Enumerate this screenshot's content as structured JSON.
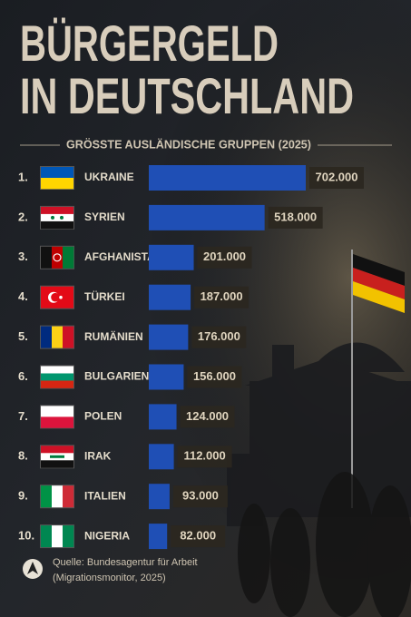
{
  "chart_data": {
    "type": "bar",
    "orientation": "horizontal",
    "title_lines": [
      "BÜRGERGELD",
      "IN DEUTSCHLAND"
    ],
    "subtitle": "GRÖSSTE AUSLÄNDISCHE GRUPPEN (2025)",
    "ranks": [
      "1.",
      "2.",
      "3.",
      "4.",
      "5.",
      "6.",
      "7.",
      "8.",
      "9.",
      "10."
    ],
    "categories": [
      "UKRAINE",
      "SYRIEN",
      "AFGHANISTAN",
      "TÜRKEI",
      "RUMÄNIEN",
      "BULGARIEN",
      "POLEN",
      "IRAK",
      "ITALIEN",
      "NIGERIA"
    ],
    "values": [
      702000,
      518000,
      201000,
      187000,
      176000,
      156000,
      124000,
      112000,
      93000,
      82000
    ],
    "value_labels": [
      "702.000",
      "518.000",
      "201.000",
      "187.000",
      "176.000",
      "156.000",
      "124.000",
      "112.000",
      "93.000",
      "82.000"
    ],
    "color": "#1f4fb5",
    "source_lines": [
      "Quelle: Bundesagentur für Arbeit",
      "(Migrationsmonitor, 2025)"
    ]
  }
}
